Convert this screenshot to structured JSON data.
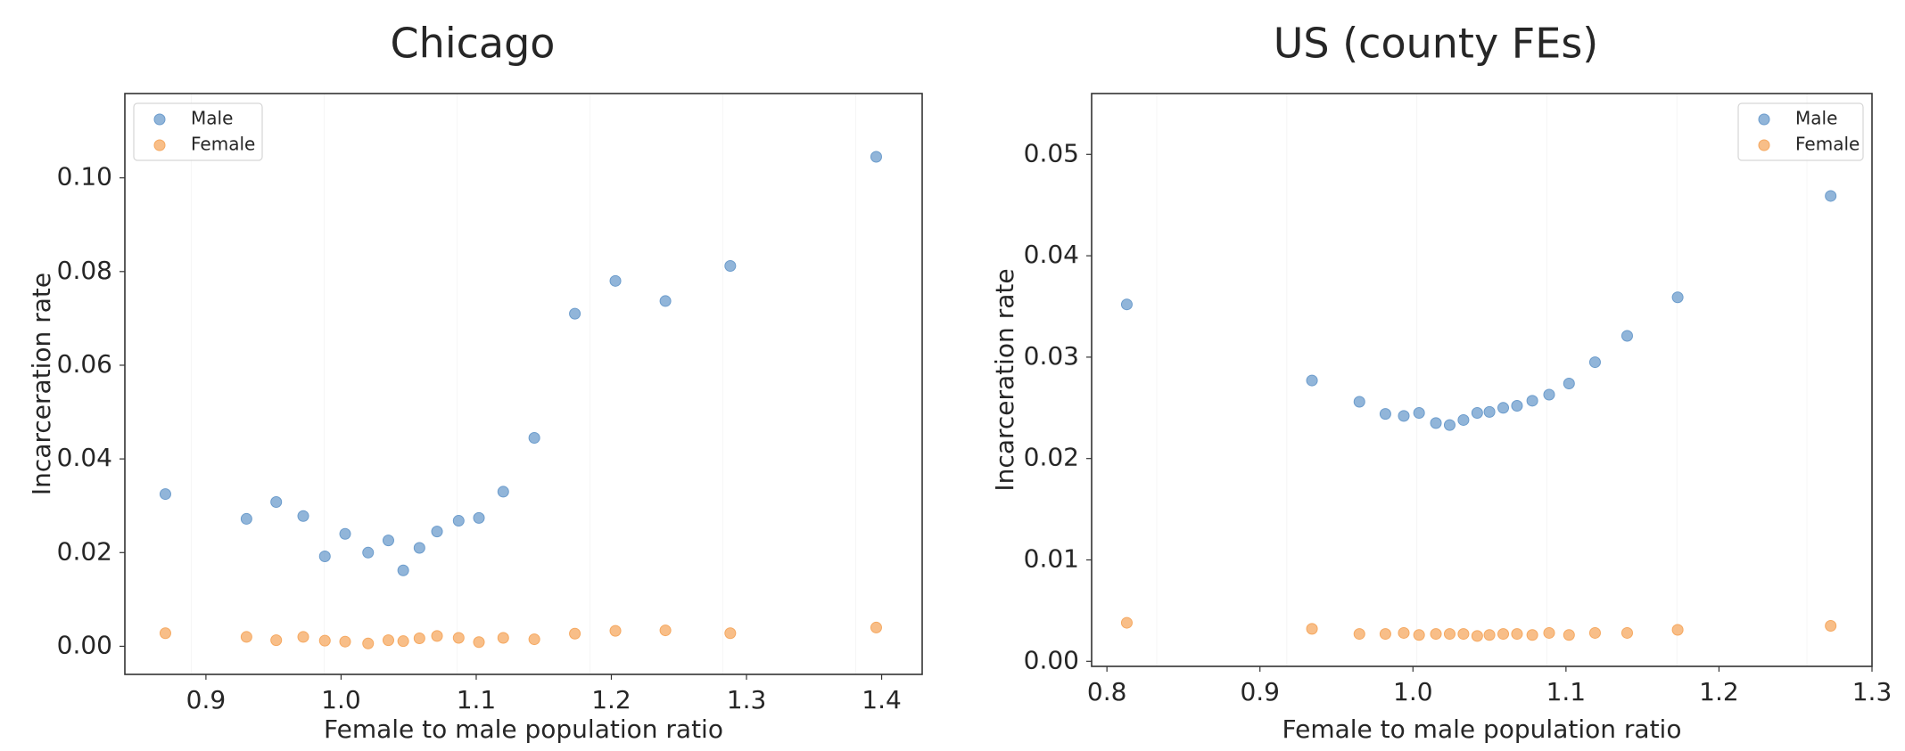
{
  "chart_data": [
    {
      "type": "scatter",
      "title": "Chicago",
      "xlabel": "Female to male population ratio",
      "ylabel": "Incarceration rate",
      "xlim": [
        0.84,
        1.43
      ],
      "ylim": [
        -0.006,
        0.118
      ],
      "xticks": [
        "0.9",
        "1.0",
        "1.1",
        "1.2",
        "1.3",
        "1.4"
      ],
      "yticks": [
        "0.00",
        "0.02",
        "0.04",
        "0.06",
        "0.08",
        "0.10"
      ],
      "grid": false,
      "legend_position": "top-left",
      "series": [
        {
          "name": "Male",
          "color": "#6c9ccc",
          "points": [
            [
              0.87,
              0.0325
            ],
            [
              0.93,
              0.0272
            ],
            [
              0.952,
              0.0308
            ],
            [
              0.972,
              0.0278
            ],
            [
              0.988,
              0.0192
            ],
            [
              1.003,
              0.024
            ],
            [
              1.02,
              0.02
            ],
            [
              1.035,
              0.0226
            ],
            [
              1.046,
              0.0162
            ],
            [
              1.058,
              0.021
            ],
            [
              1.071,
              0.0245
            ],
            [
              1.087,
              0.0268
            ],
            [
              1.102,
              0.0274
            ],
            [
              1.12,
              0.033
            ],
            [
              1.143,
              0.0445
            ],
            [
              1.173,
              0.071
            ],
            [
              1.203,
              0.078
            ],
            [
              1.24,
              0.0737
            ],
            [
              1.288,
              0.0812
            ],
            [
              1.396,
              0.1045
            ]
          ]
        },
        {
          "name": "Female",
          "color": "#f5a860",
          "points": [
            [
              0.87,
              0.0028
            ],
            [
              0.93,
              0.002
            ],
            [
              0.952,
              0.0013
            ],
            [
              0.972,
              0.002
            ],
            [
              0.988,
              0.0012
            ],
            [
              1.003,
              0.001
            ],
            [
              1.02,
              0.0006
            ],
            [
              1.035,
              0.0013
            ],
            [
              1.046,
              0.0011
            ],
            [
              1.058,
              0.0017
            ],
            [
              1.071,
              0.0022
            ],
            [
              1.087,
              0.0018
            ],
            [
              1.102,
              0.0009
            ],
            [
              1.12,
              0.0018
            ],
            [
              1.143,
              0.0015
            ],
            [
              1.173,
              0.0027
            ],
            [
              1.203,
              0.0033
            ],
            [
              1.24,
              0.0034
            ],
            [
              1.288,
              0.0028
            ],
            [
              1.396,
              0.004
            ]
          ]
        }
      ]
    },
    {
      "type": "scatter",
      "title": "US (county FEs)",
      "xlabel": "Female to male population ratio",
      "ylabel": "Incarceration rate",
      "xlim": [
        0.79,
        1.3
      ],
      "ylim": [
        -0.0005,
        0.056
      ],
      "xticks": [
        "0.8",
        "0.9",
        "1.0",
        "1.1",
        "1.2",
        "1.3"
      ],
      "yticks": [
        "0.00",
        "0.01",
        "0.02",
        "0.03",
        "0.04",
        "0.05"
      ],
      "grid": false,
      "legend_position": "top-right",
      "series": [
        {
          "name": "Male",
          "color": "#6c9ccc",
          "points": [
            [
              0.813,
              0.0352
            ],
            [
              0.934,
              0.0277
            ],
            [
              0.965,
              0.0256
            ],
            [
              0.982,
              0.0244
            ],
            [
              0.994,
              0.0242
            ],
            [
              1.004,
              0.0245
            ],
            [
              1.015,
              0.0235
            ],
            [
              1.024,
              0.0233
            ],
            [
              1.033,
              0.0238
            ],
            [
              1.042,
              0.0245
            ],
            [
              1.05,
              0.0246
            ],
            [
              1.059,
              0.025
            ],
            [
              1.068,
              0.0252
            ],
            [
              1.078,
              0.0257
            ],
            [
              1.089,
              0.0263
            ],
            [
              1.102,
              0.0274
            ],
            [
              1.119,
              0.0295
            ],
            [
              1.14,
              0.0321
            ],
            [
              1.173,
              0.0359
            ],
            [
              1.273,
              0.0459
            ]
          ]
        },
        {
          "name": "Female",
          "color": "#f5a860",
          "points": [
            [
              0.813,
              0.0038
            ],
            [
              0.934,
              0.0032
            ],
            [
              0.965,
              0.0027
            ],
            [
              0.982,
              0.0027
            ],
            [
              0.994,
              0.0028
            ],
            [
              1.004,
              0.0026
            ],
            [
              1.015,
              0.0027
            ],
            [
              1.024,
              0.0027
            ],
            [
              1.033,
              0.0027
            ],
            [
              1.042,
              0.0025
            ],
            [
              1.05,
              0.0026
            ],
            [
              1.059,
              0.0027
            ],
            [
              1.068,
              0.0027
            ],
            [
              1.078,
              0.0026
            ],
            [
              1.089,
              0.0028
            ],
            [
              1.102,
              0.0026
            ],
            [
              1.119,
              0.0028
            ],
            [
              1.14,
              0.0028
            ],
            [
              1.173,
              0.0031
            ],
            [
              1.273,
              0.0035
            ]
          ]
        }
      ]
    }
  ]
}
